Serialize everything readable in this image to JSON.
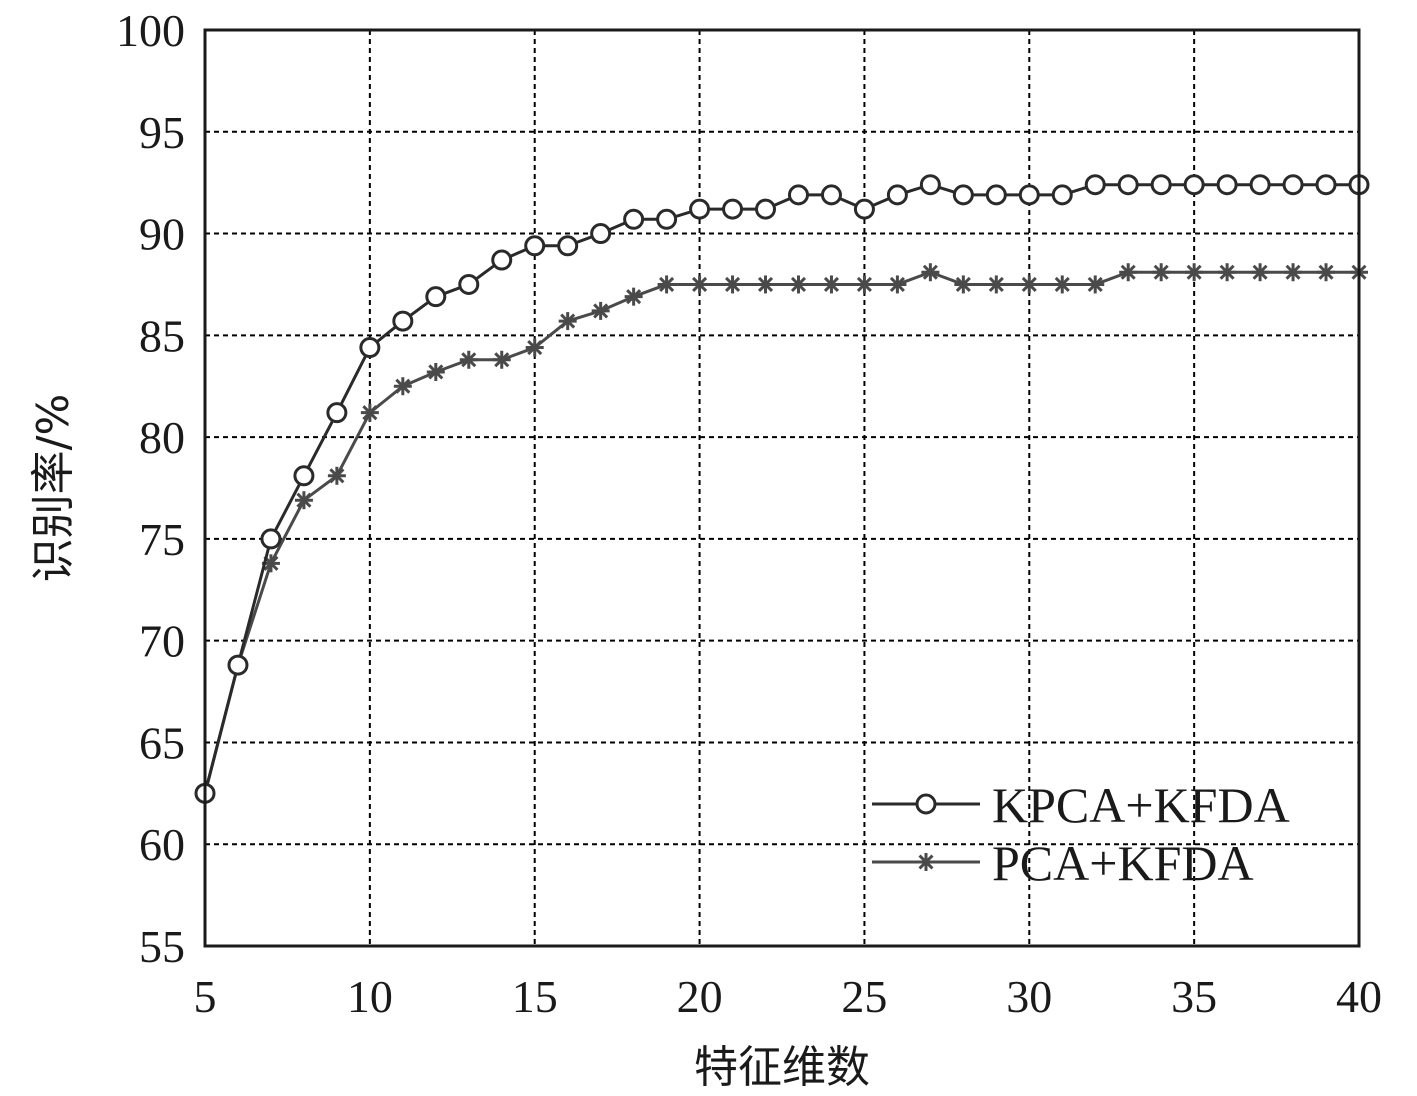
{
  "chart_data": {
    "type": "line",
    "title": "",
    "xlabel": "特征维数",
    "ylabel": "识别率/%",
    "xlim": [
      5,
      40
    ],
    "ylim": [
      55,
      100
    ],
    "xticks": [
      5,
      10,
      15,
      20,
      25,
      30,
      35,
      40
    ],
    "yticks": [
      55,
      60,
      65,
      70,
      75,
      80,
      85,
      90,
      95,
      100
    ],
    "grid": true,
    "legend_position": "bottom-right",
    "x": [
      5,
      6,
      7,
      8,
      9,
      10,
      11,
      12,
      13,
      14,
      15,
      16,
      17,
      18,
      19,
      20,
      21,
      22,
      23,
      24,
      25,
      26,
      27,
      28,
      29,
      30,
      31,
      32,
      33,
      34,
      35,
      36,
      37,
      38,
      39,
      40
    ],
    "series": [
      {
        "name": "KPCA+KFDA",
        "marker": "circle",
        "color": "#2a2a2a",
        "values": [
          62.5,
          68.8,
          75.0,
          78.1,
          81.2,
          84.4,
          85.7,
          86.9,
          87.5,
          88.7,
          89.4,
          89.4,
          90.0,
          90.7,
          90.7,
          91.2,
          91.2,
          91.2,
          91.9,
          91.9,
          91.2,
          91.9,
          92.4,
          91.9,
          91.9,
          91.9,
          91.9,
          92.4,
          92.4,
          92.4,
          92.4,
          92.4,
          92.4,
          92.4,
          92.4,
          92.4
        ]
      },
      {
        "name": "PCA+KFDA",
        "marker": "asterisk",
        "color": "#4a4a4a",
        "values": [
          62.5,
          68.8,
          73.8,
          76.9,
          78.1,
          81.2,
          82.5,
          83.2,
          83.8,
          83.8,
          84.4,
          85.7,
          86.2,
          86.9,
          87.5,
          87.5,
          87.5,
          87.5,
          87.5,
          87.5,
          87.5,
          87.5,
          88.1,
          87.5,
          87.5,
          87.5,
          87.5,
          87.5,
          88.1,
          88.1,
          88.1,
          88.1,
          88.1,
          88.1,
          88.1,
          88.1
        ]
      }
    ]
  }
}
